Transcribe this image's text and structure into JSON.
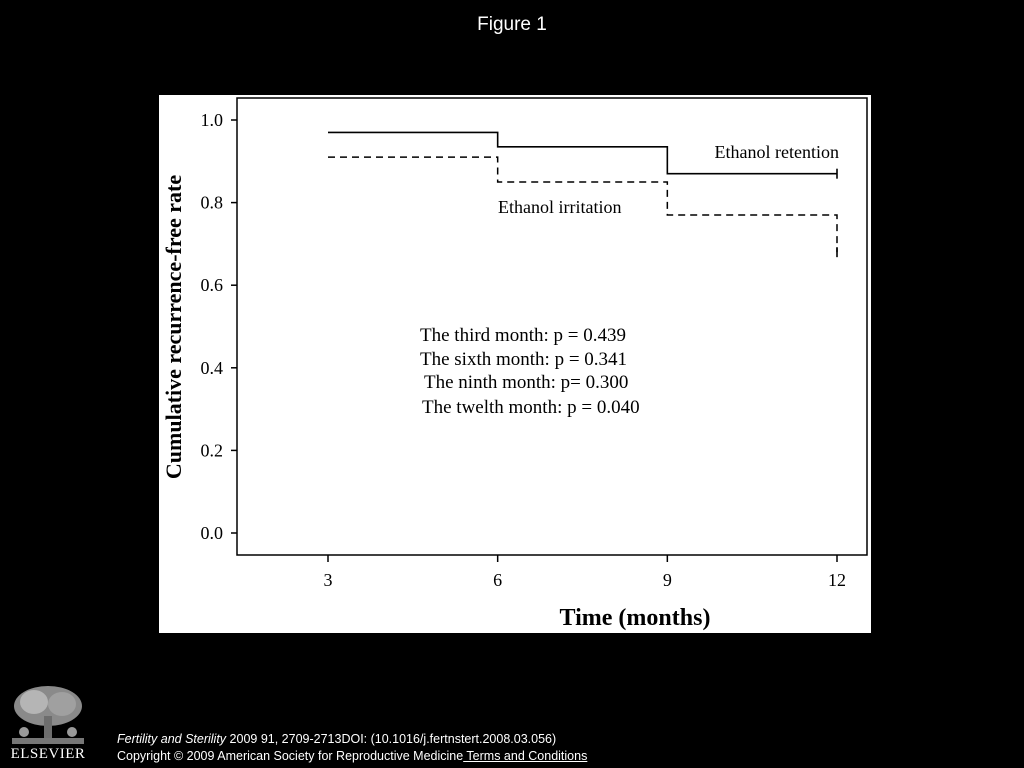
{
  "figure_title": "Figure 1",
  "chart_data": {
    "type": "line",
    "step": true,
    "ylabel": "Cumulative recurrence-free rate",
    "xlabel": "Time (months)",
    "xlim": [
      2,
      12.2
    ],
    "ylim": [
      0,
      1.05
    ],
    "xticks": [
      3,
      6,
      9,
      12
    ],
    "xtick_labels": [
      "3",
      "6",
      "9",
      "12"
    ],
    "yticks": [
      0.0,
      0.2,
      0.4,
      0.6,
      0.8,
      1.0
    ],
    "ytick_labels": [
      "0.0",
      "0.2",
      "0.4",
      "0.6",
      "0.8",
      "1.0"
    ],
    "grid": false,
    "series": [
      {
        "name": "Ethanol retention",
        "style": "solid",
        "x": [
          3,
          6,
          9,
          12
        ],
        "y": [
          0.97,
          0.935,
          0.87,
          0.87
        ]
      },
      {
        "name": "Ethanol irritation",
        "style": "dashed",
        "x": [
          3,
          6,
          9,
          12
        ],
        "y": [
          0.91,
          0.85,
          0.77,
          0.68
        ]
      }
    ],
    "annotations": [
      "The third month: p = 0.439",
      "The sixth month: p = 0.341",
      "The ninth month: p= 0.300",
      "The twelth month: p = 0.040"
    ]
  },
  "footer": {
    "journal": "Fertility and Sterility",
    "citation": " 2009 91, 2709-2713DOI: (10.1016/j.fertnstert.2008.03.056)",
    "copyright": "Copyright © 2009 American Society for Reproductive Medicine",
    "terms_link": " Terms and Conditions"
  },
  "logo": {
    "text": "ELSEVIER",
    "icon": "elsevier-tree-icon"
  }
}
